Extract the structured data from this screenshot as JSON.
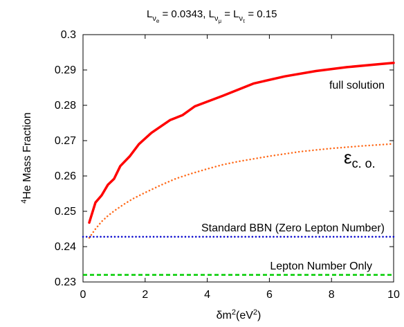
{
  "chart_data": {
    "type": "line",
    "title": {
      "l1": "L",
      "s1": "ν",
      "ss1": "e",
      "m1": " = 0.0343,  ",
      "l2": "L",
      "s2": "ν",
      "ss2": "μ",
      "m2": " = ",
      "l3": "L",
      "s3": "ν",
      "ss3": "τ",
      "m3": " = 0.15"
    },
    "xlabel": {
      "base": "δm",
      "sup1": "2",
      "mid": "(eV",
      "sup2": "2",
      "end": ")"
    },
    "ylabel": {
      "sup": "4",
      "text": "He Mass Fraction"
    },
    "xlim": [
      0,
      10
    ],
    "ylim": [
      0.23,
      0.3
    ],
    "xticks": [
      0,
      2,
      4,
      6,
      8,
      10
    ],
    "yticks": [
      0.23,
      0.24,
      0.25,
      0.26,
      0.27,
      0.28,
      0.29,
      0.3
    ],
    "ytick_labels": [
      "0.23",
      "0.24",
      "0.25",
      "0.26",
      "0.27",
      "0.28",
      "0.29",
      "0.3"
    ],
    "grid": false,
    "legend": "none",
    "series": [
      {
        "key": "full",
        "color": "#ff0000",
        "style": "solid",
        "x": [
          0.2,
          0.4,
          0.6,
          0.8,
          1.0,
          1.2,
          1.5,
          1.8,
          2.2,
          2.8,
          3.2,
          3.6,
          4.5,
          5.5,
          6.5,
          7.5,
          8.5,
          9.5,
          10.0
        ],
        "y": [
          0.2468,
          0.2525,
          0.2545,
          0.2575,
          0.2592,
          0.2628,
          0.2655,
          0.269,
          0.2722,
          0.2758,
          0.2772,
          0.2797,
          0.2827,
          0.2862,
          0.2882,
          0.2897,
          0.2908,
          0.2916,
          0.292
        ]
      },
      {
        "key": "eps",
        "color": "#ff6a1a",
        "style": "dotted",
        "x": [
          0.2,
          0.4,
          0.6,
          0.8,
          1.0,
          1.3,
          1.6,
          2.0,
          2.5,
          3.0,
          3.5,
          4.0,
          4.5,
          5.0,
          6.0,
          7.0,
          8.0,
          9.0,
          10.0
        ],
        "y": [
          0.2425,
          0.245,
          0.2471,
          0.2487,
          0.2501,
          0.2519,
          0.2535,
          0.2553,
          0.2574,
          0.2593,
          0.2607,
          0.262,
          0.2632,
          0.2641,
          0.2656,
          0.2669,
          0.2678,
          0.2685,
          0.2691
        ]
      },
      {
        "key": "sbbn",
        "color": "#0000cc",
        "style": "dotted",
        "x": [
          0,
          10
        ],
        "y": [
          0.2428,
          0.2428
        ]
      },
      {
        "key": "lepton",
        "color": "#00cc00",
        "style": "dashed",
        "x": [
          0,
          10
        ],
        "y": [
          0.232,
          0.232
        ]
      }
    ],
    "annotations": {
      "full_solution": "full solution",
      "eps_symbol": "ε",
      "eps_sub": "c. o.",
      "sbbn": "Standard BBN (Zero Lepton Number)",
      "lepton_only": "Lepton Number Only"
    }
  }
}
